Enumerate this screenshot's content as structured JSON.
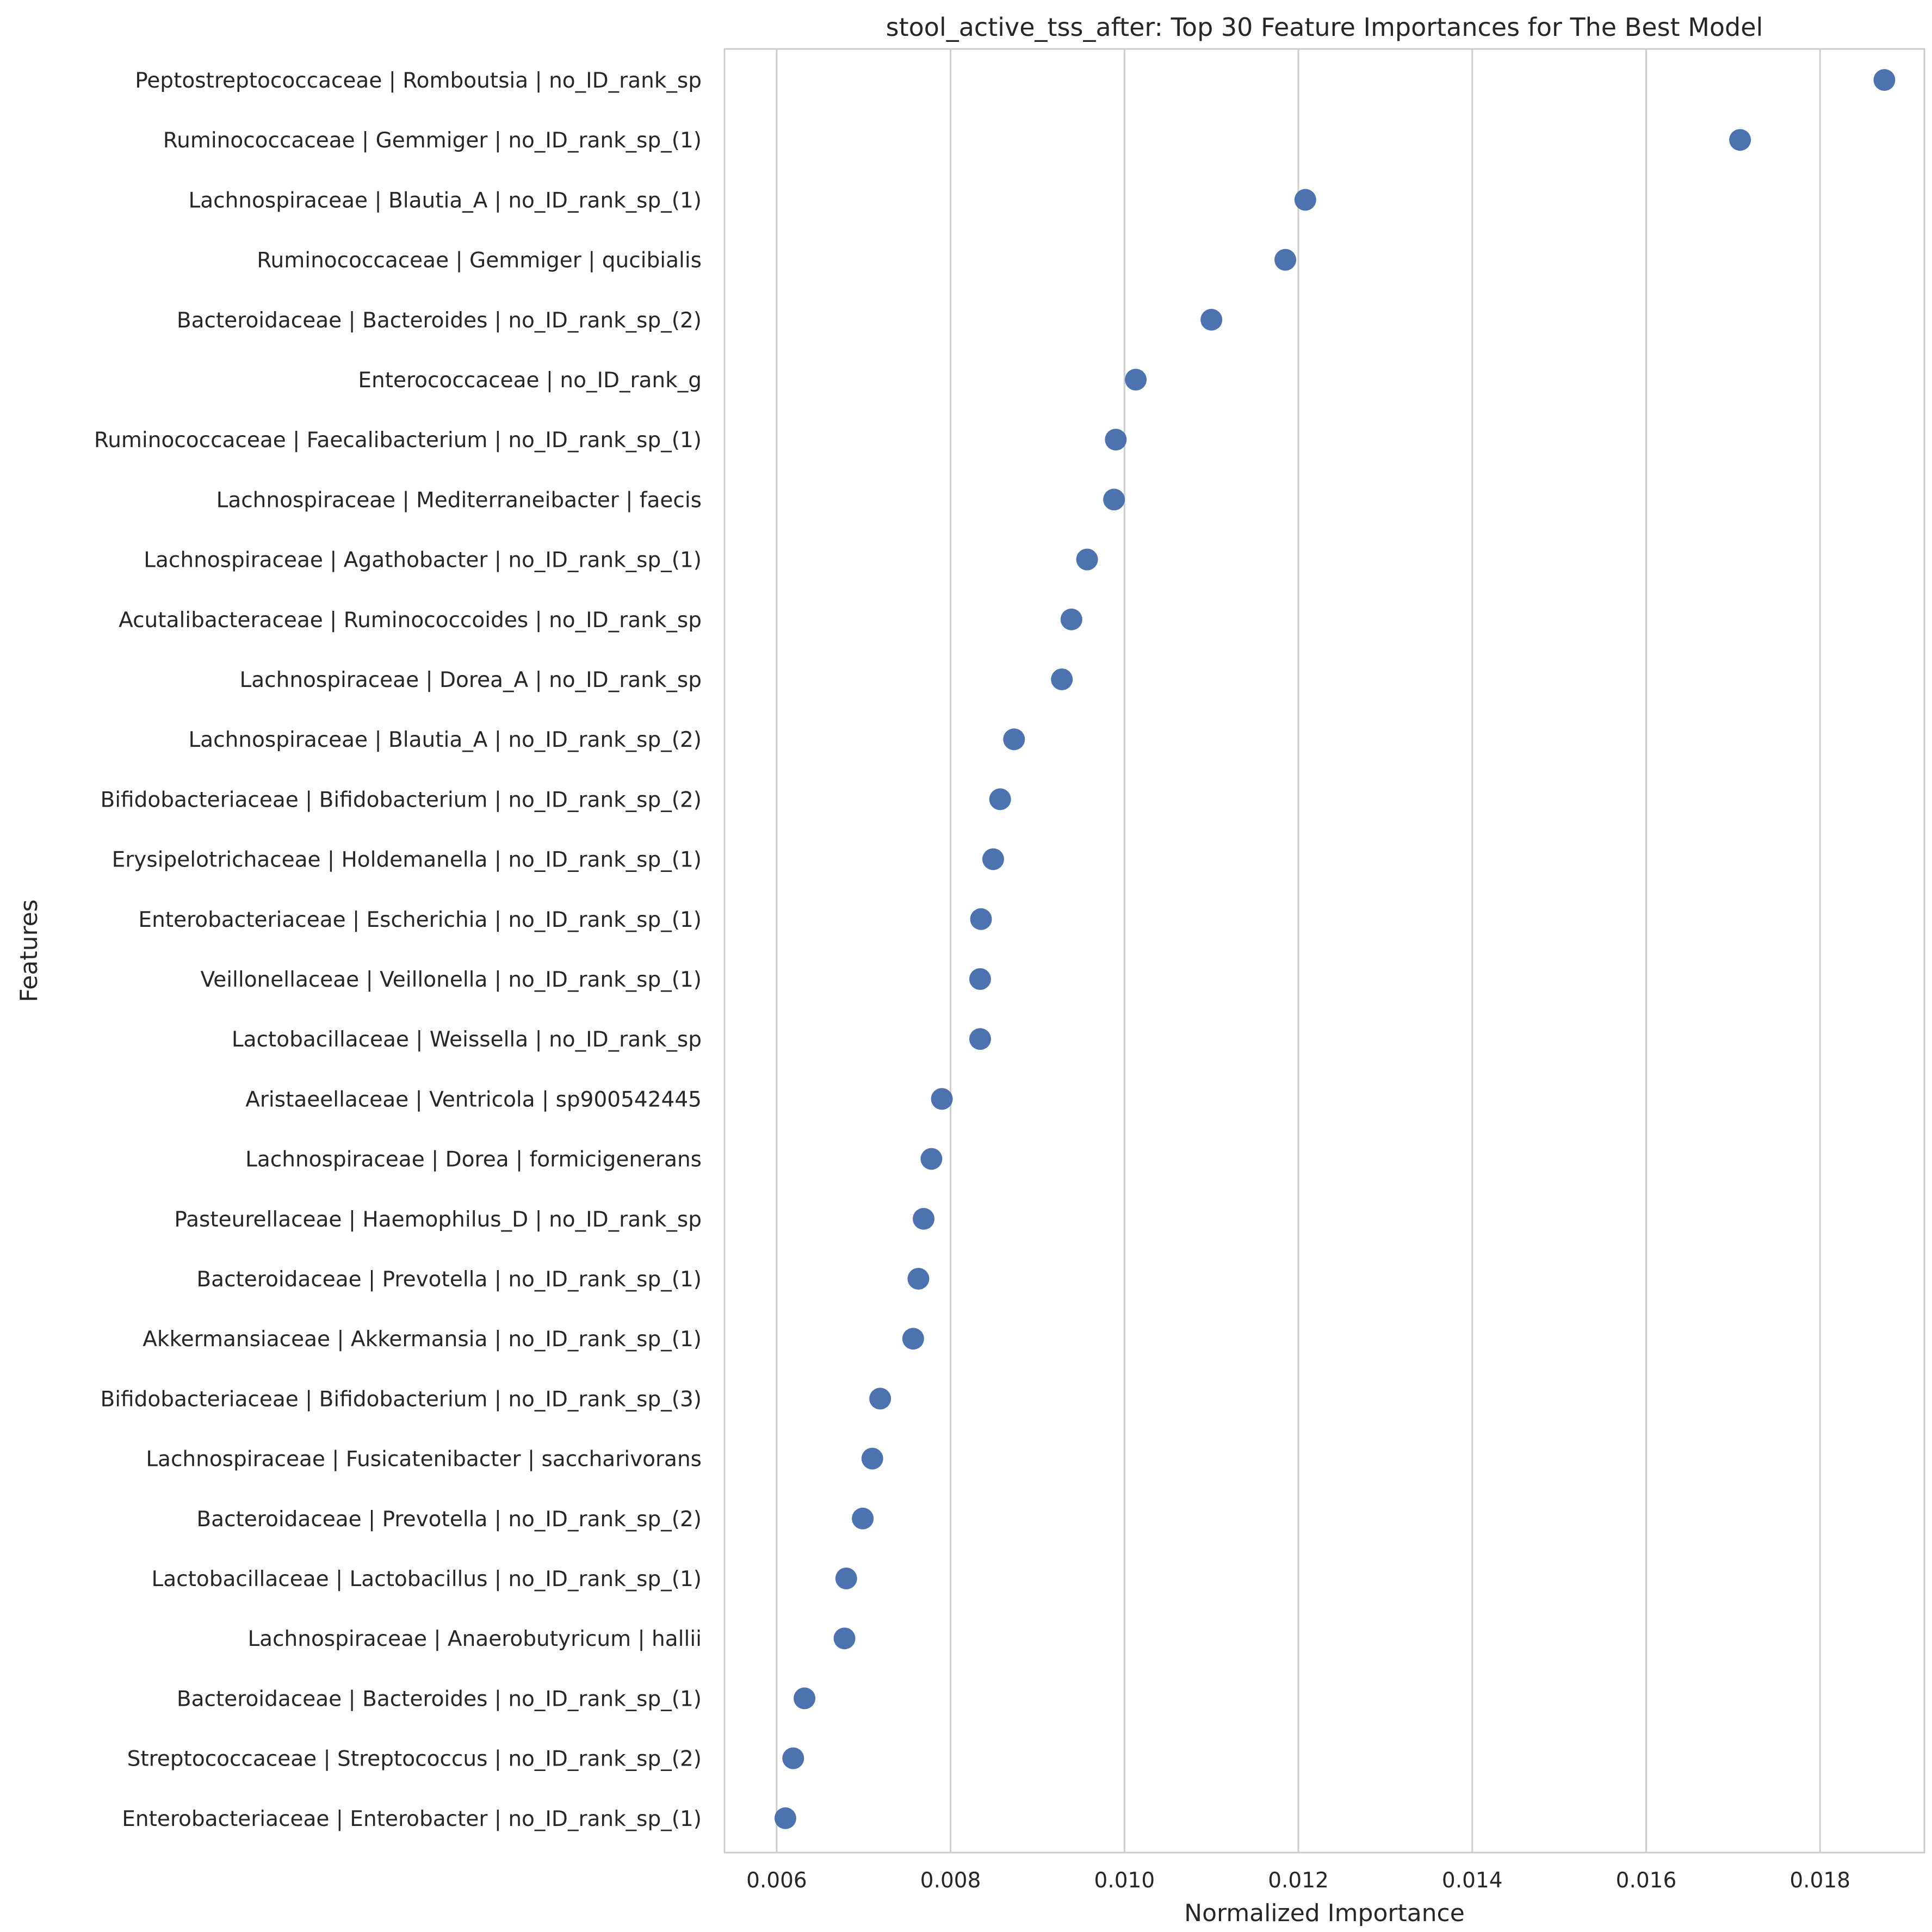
{
  "chart_data": {
    "type": "scatter",
    "title": "stool_active_tss_after: Top 30 Feature Importances for The Best Model",
    "xlabel": "Normalized Importance",
    "ylabel": "Features",
    "xlim": [
      0.0054,
      0.0192
    ],
    "xticks": [
      0.006,
      0.008,
      0.01,
      0.012,
      0.014,
      0.016,
      0.018
    ],
    "xtick_labels": [
      "0.006",
      "0.008",
      "0.010",
      "0.012",
      "0.014",
      "0.016",
      "0.018"
    ],
    "grid": "vertical",
    "marker_color": "#4c72b0",
    "categories": [
      "Peptostreptococcaceae | Romboutsia | no_ID_rank_sp",
      "Ruminococcaceae | Gemmiger | no_ID_rank_sp_(1)",
      "Lachnospiraceae | Blautia_A | no_ID_rank_sp_(1)",
      "Ruminococcaceae | Gemmiger | qucibialis",
      "Bacteroidaceae | Bacteroides | no_ID_rank_sp_(2)",
      "Enterococcaceae | no_ID_rank_g",
      "Ruminococcaceae | Faecalibacterium | no_ID_rank_sp_(1)",
      "Lachnospiraceae | Mediterraneibacter | faecis",
      "Lachnospiraceae | Agathobacter | no_ID_rank_sp_(1)",
      "Acutalibacteraceae | Ruminococcoides | no_ID_rank_sp",
      "Lachnospiraceae | Dorea_A | no_ID_rank_sp",
      "Lachnospiraceae | Blautia_A | no_ID_rank_sp_(2)",
      "Bifidobacteriaceae | Bifidobacterium | no_ID_rank_sp_(2)",
      "Erysipelotrichaceae | Holdemanella | no_ID_rank_sp_(1)",
      "Enterobacteriaceae | Escherichia | no_ID_rank_sp_(1)",
      "Veillonellaceae | Veillonella | no_ID_rank_sp_(1)",
      "Lactobacillaceae | Weissella | no_ID_rank_sp",
      "Aristaeellaceae | Ventricola | sp900542445",
      "Lachnospiraceae | Dorea | formicigenerans",
      "Pasteurellaceae | Haemophilus_D | no_ID_rank_sp",
      "Bacteroidaceae | Prevotella | no_ID_rank_sp_(1)",
      "Akkermansiaceae | Akkermansia | no_ID_rank_sp_(1)",
      "Bifidobacteriaceae | Bifidobacterium | no_ID_rank_sp_(3)",
      "Lachnospiraceae | Fusicatenibacter | saccharivorans",
      "Bacteroidaceae | Prevotella | no_ID_rank_sp_(2)",
      "Lactobacillaceae | Lactobacillus | no_ID_rank_sp_(1)",
      "Lachnospiraceae | Anaerobutyricum | hallii",
      "Bacteroidaceae | Bacteroides | no_ID_rank_sp_(1)",
      "Streptococcaceae | Streptococcus | no_ID_rank_sp_(2)",
      "Enterobacteriaceae | Enterobacter | no_ID_rank_sp_(1)"
    ],
    "values": [
      0.01874,
      0.01708,
      0.01208,
      0.01185,
      0.011,
      0.01013,
      0.0099,
      0.00988,
      0.00957,
      0.00939,
      0.00928,
      0.00873,
      0.00857,
      0.00849,
      0.00835,
      0.00834,
      0.00834,
      0.0079,
      0.00778,
      0.00769,
      0.00763,
      0.00757,
      0.00719,
      0.0071,
      0.00699,
      0.0068,
      0.00678,
      0.00632,
      0.00619,
      0.0061
    ]
  }
}
